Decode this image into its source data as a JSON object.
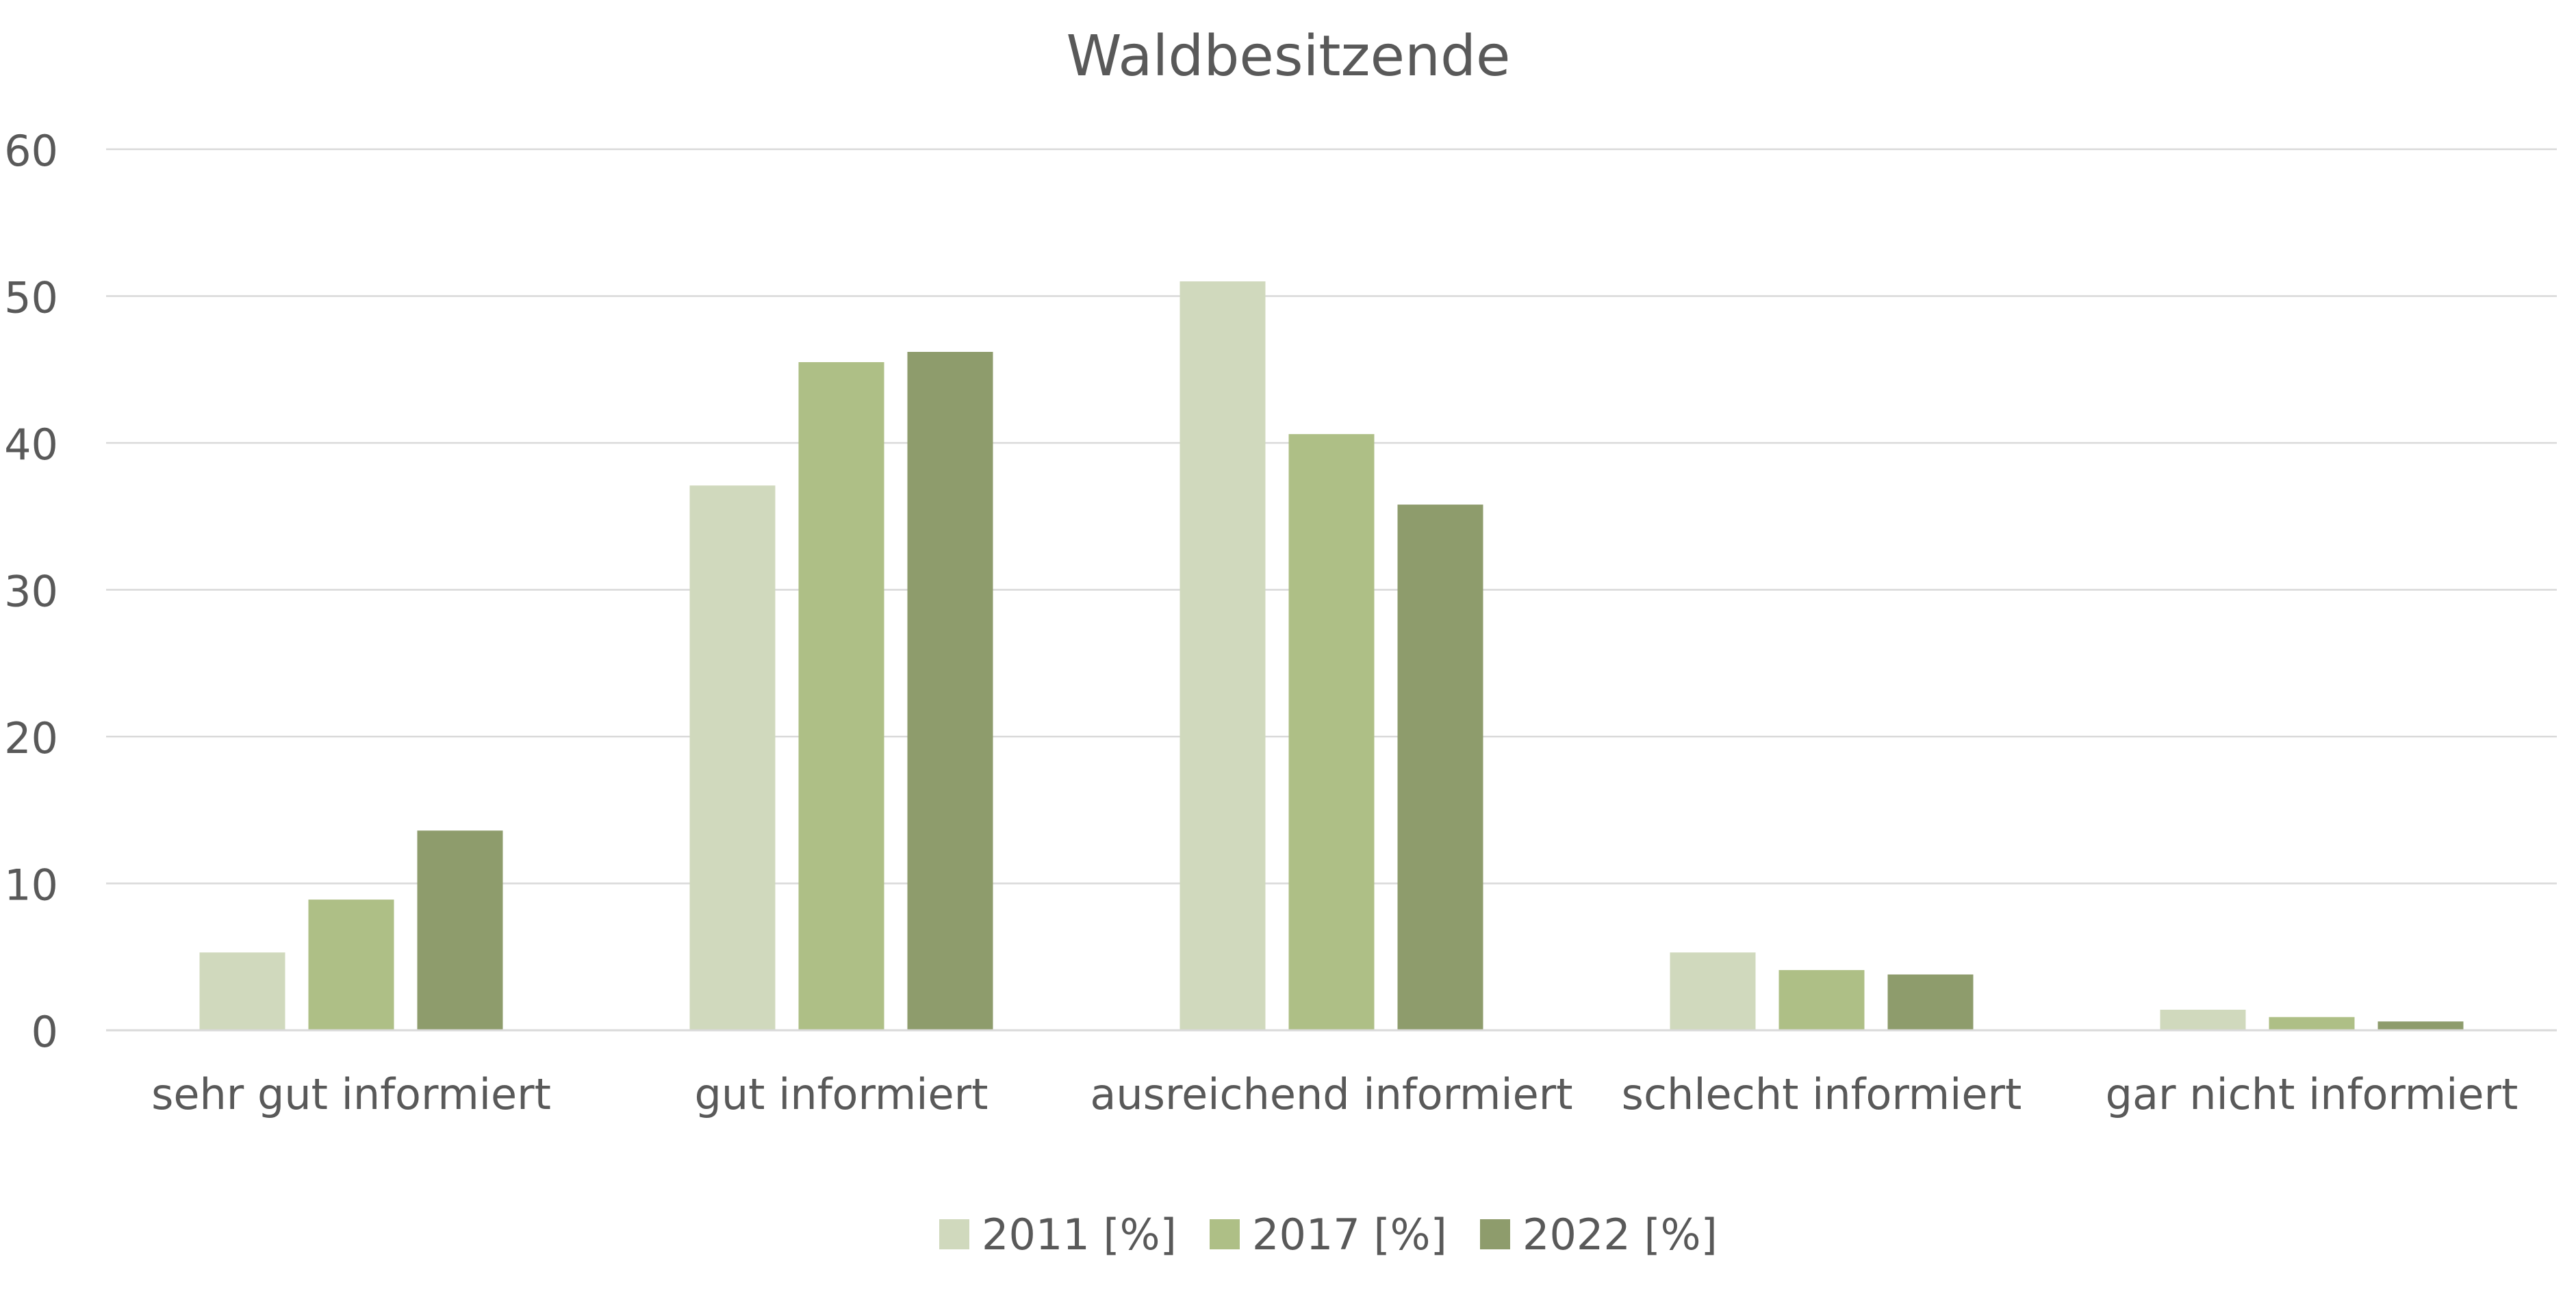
{
  "chart_data": {
    "type": "bar",
    "title": "Waldbesitzende",
    "categories": [
      "sehr gut informiert",
      "gut informiert",
      "ausreichend informiert",
      "schlecht informiert",
      "gar nicht informiert"
    ],
    "series": [
      {
        "name": "2011 [%]",
        "color": "#d0d9bd",
        "values": [
          5.3,
          37.1,
          51.0,
          5.3,
          1.4
        ]
      },
      {
        "name": "2017 [%]",
        "color": "#aebf86",
        "values": [
          8.9,
          45.5,
          40.6,
          4.1,
          0.9
        ]
      },
      {
        "name": "2022 [%]",
        "color": "#8e9c6c",
        "values": [
          13.6,
          46.2,
          35.8,
          3.8,
          0.6
        ]
      }
    ],
    "ylim": [
      0,
      60
    ],
    "yticks": [
      0,
      10,
      20,
      30,
      40,
      50,
      60
    ],
    "grid": true,
    "legend_position": "bottom"
  }
}
